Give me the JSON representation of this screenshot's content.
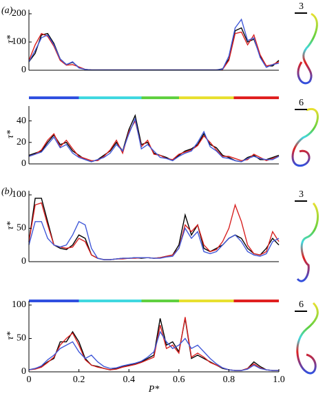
{
  "chart_data": [
    {
      "type": "line",
      "panel_label": "(a)",
      "ylabel": "τ*",
      "scale_label": "3",
      "x": [
        0,
        0.025,
        0.05,
        0.075,
        0.1,
        0.125,
        0.15,
        0.175,
        0.2,
        0.225,
        0.25,
        0.275,
        0.3,
        0.325,
        0.35,
        0.375,
        0.4,
        0.425,
        0.45,
        0.475,
        0.5,
        0.525,
        0.55,
        0.575,
        0.6,
        0.625,
        0.65,
        0.675,
        0.7,
        0.725,
        0.75,
        0.775,
        0.8,
        0.825,
        0.85,
        0.875,
        0.9,
        0.925,
        0.95,
        0.975,
        1
      ],
      "xlim": [
        0,
        1
      ],
      "ylim": [
        0,
        200
      ],
      "yticks": [
        0,
        100,
        200
      ],
      "series": [
        {
          "name": "black",
          "color": "#000000",
          "values": [
            30,
            60,
            125,
            130,
            95,
            40,
            20,
            28,
            10,
            3,
            1,
            1,
            1,
            1,
            1,
            1,
            1,
            1,
            1,
            1,
            1,
            1,
            1,
            1,
            1,
            1,
            1,
            1,
            1,
            1,
            1,
            5,
            40,
            140,
            150,
            100,
            110,
            50,
            15,
            15,
            35
          ]
        },
        {
          "name": "red",
          "color": "#d82020",
          "values": [
            35,
            90,
            130,
            120,
            85,
            35,
            18,
            20,
            12,
            3,
            1,
            1,
            1,
            1,
            1,
            1,
            1,
            1,
            1,
            1,
            1,
            1,
            1,
            1,
            1,
            1,
            1,
            1,
            1,
            1,
            1,
            3,
            35,
            130,
            135,
            90,
            125,
            55,
            15,
            20,
            30
          ]
        },
        {
          "name": "blue",
          "color": "#4058d8",
          "values": [
            30,
            70,
            115,
            125,
            90,
            40,
            20,
            30,
            8,
            3,
            1,
            1,
            1,
            1,
            1,
            1,
            1,
            1,
            1,
            1,
            1,
            1,
            1,
            1,
            1,
            1,
            1,
            1,
            1,
            1,
            1,
            4,
            50,
            150,
            180,
            105,
            115,
            45,
            10,
            20,
            25
          ]
        }
      ]
    },
    {
      "type": "line",
      "ylabel": "τ*",
      "scale_label": "6",
      "x": [
        0,
        0.025,
        0.05,
        0.075,
        0.1,
        0.125,
        0.15,
        0.175,
        0.2,
        0.225,
        0.25,
        0.275,
        0.3,
        0.325,
        0.35,
        0.375,
        0.4,
        0.425,
        0.45,
        0.475,
        0.5,
        0.525,
        0.55,
        0.575,
        0.6,
        0.625,
        0.65,
        0.675,
        0.7,
        0.725,
        0.75,
        0.775,
        0.8,
        0.825,
        0.85,
        0.875,
        0.9,
        0.925,
        0.95,
        0.975,
        1
      ],
      "xlim": [
        0,
        1
      ],
      "ylim": [
        0,
        50
      ],
      "yticks": [
        0,
        20,
        40
      ],
      "series": [
        {
          "name": "black",
          "color": "#000000",
          "values": [
            8,
            10,
            12,
            20,
            27,
            18,
            20,
            12,
            8,
            4,
            2,
            4,
            8,
            12,
            20,
            12,
            32,
            45,
            18,
            20,
            10,
            8,
            6,
            3,
            8,
            12,
            14,
            18,
            28,
            18,
            15,
            8,
            6,
            3,
            2,
            6,
            8,
            4,
            4,
            6,
            8
          ]
        },
        {
          "name": "red",
          "color": "#d82020",
          "values": [
            7,
            9,
            13,
            22,
            28,
            16,
            22,
            14,
            7,
            5,
            3,
            3,
            7,
            13,
            22,
            10,
            30,
            40,
            16,
            22,
            9,
            8,
            5,
            4,
            9,
            11,
            13,
            17,
            26,
            20,
            13,
            7,
            7,
            5,
            3,
            4,
            9,
            6,
            3,
            5,
            7
          ]
        },
        {
          "name": "blue",
          "color": "#4058d8",
          "values": [
            7,
            9,
            11,
            18,
            25,
            15,
            18,
            10,
            6,
            4,
            2,
            4,
            6,
            10,
            18,
            12,
            28,
            42,
            14,
            18,
            12,
            6,
            5,
            3,
            7,
            10,
            12,
            20,
            30,
            16,
            12,
            6,
            5,
            3,
            2,
            5,
            7,
            5,
            4,
            4,
            7
          ]
        }
      ]
    },
    {
      "type": "line",
      "panel_label": "(b)",
      "ylabel": "τ*",
      "scale_label": "3",
      "x": [
        0,
        0.025,
        0.05,
        0.075,
        0.1,
        0.125,
        0.15,
        0.175,
        0.2,
        0.225,
        0.25,
        0.275,
        0.3,
        0.325,
        0.35,
        0.375,
        0.4,
        0.425,
        0.45,
        0.475,
        0.5,
        0.525,
        0.55,
        0.575,
        0.6,
        0.625,
        0.65,
        0.675,
        0.7,
        0.725,
        0.75,
        0.775,
        0.8,
        0.825,
        0.85,
        0.875,
        0.9,
        0.925,
        0.95,
        0.975,
        1
      ],
      "xlim": [
        0,
        1
      ],
      "ylim": [
        0,
        100
      ],
      "yticks": [
        0,
        50,
        100
      ],
      "series": [
        {
          "name": "black",
          "color": "#000000",
          "values": [
            30,
            95,
            95,
            60,
            25,
            20,
            18,
            25,
            40,
            35,
            10,
            5,
            3,
            3,
            4,
            5,
            5,
            6,
            5,
            6,
            5,
            6,
            8,
            10,
            25,
            70,
            40,
            55,
            20,
            15,
            20,
            25,
            35,
            40,
            35,
            20,
            12,
            10,
            20,
            35,
            25
          ]
        },
        {
          "name": "red",
          "color": "#d82020",
          "values": [
            30,
            85,
            88,
            55,
            25,
            22,
            20,
            22,
            35,
            30,
            10,
            5,
            3,
            3,
            4,
            4,
            5,
            5,
            6,
            6,
            5,
            6,
            8,
            10,
            20,
            55,
            45,
            55,
            25,
            15,
            18,
            30,
            50,
            85,
            60,
            25,
            12,
            10,
            15,
            45,
            30
          ]
        },
        {
          "name": "blue",
          "color": "#4058d8",
          "values": [
            25,
            60,
            60,
            35,
            25,
            22,
            25,
            40,
            60,
            55,
            20,
            5,
            3,
            3,
            4,
            5,
            5,
            6,
            6,
            6,
            5,
            5,
            7,
            8,
            20,
            50,
            35,
            45,
            15,
            12,
            15,
            25,
            35,
            40,
            30,
            15,
            10,
            8,
            12,
            30,
            35
          ]
        }
      ]
    },
    {
      "type": "line",
      "ylabel": "τ*",
      "scale_label": "6",
      "xlabel": "P*",
      "x": [
        0,
        0.025,
        0.05,
        0.075,
        0.1,
        0.125,
        0.15,
        0.175,
        0.2,
        0.225,
        0.25,
        0.275,
        0.3,
        0.325,
        0.35,
        0.375,
        0.4,
        0.425,
        0.45,
        0.475,
        0.5,
        0.525,
        0.55,
        0.575,
        0.6,
        0.625,
        0.65,
        0.675,
        0.7,
        0.725,
        0.75,
        0.775,
        0.8,
        0.825,
        0.85,
        0.875,
        0.9,
        0.925,
        0.95,
        0.975,
        1
      ],
      "xlim": [
        0,
        1
      ],
      "xticks": [
        0,
        0.2,
        0.4,
        0.6,
        0.8,
        {
          "value": 1,
          "label": "1.0"
        }
      ],
      "ylim": [
        0,
        100
      ],
      "yticks": [
        0,
        50,
        100
      ],
      "series": [
        {
          "name": "black",
          "color": "#000000",
          "values": [
            3,
            5,
            8,
            15,
            20,
            45,
            45,
            60,
            45,
            20,
            10,
            8,
            5,
            3,
            5,
            8,
            10,
            12,
            15,
            20,
            25,
            80,
            40,
            45,
            30,
            80,
            20,
            25,
            20,
            15,
            10,
            5,
            3,
            2,
            2,
            5,
            15,
            8,
            3,
            2,
            2
          ]
        },
        {
          "name": "red",
          "color": "#d82020",
          "values": [
            3,
            4,
            7,
            14,
            22,
            40,
            50,
            58,
            40,
            18,
            10,
            7,
            5,
            3,
            4,
            7,
            9,
            11,
            14,
            18,
            22,
            70,
            35,
            40,
            28,
            82,
            22,
            28,
            22,
            14,
            10,
            6,
            3,
            2,
            2,
            5,
            12,
            6,
            3,
            2,
            2
          ]
        },
        {
          "name": "blue",
          "color": "#4058d8",
          "values": [
            3,
            5,
            9,
            18,
            25,
            35,
            40,
            45,
            30,
            20,
            25,
            15,
            8,
            5,
            6,
            9,
            11,
            13,
            16,
            22,
            30,
            60,
            45,
            35,
            40,
            50,
            35,
            40,
            30,
            20,
            12,
            6,
            3,
            2,
            2,
            4,
            10,
            5,
            3,
            2,
            2
          ]
        }
      ]
    }
  ]
}
